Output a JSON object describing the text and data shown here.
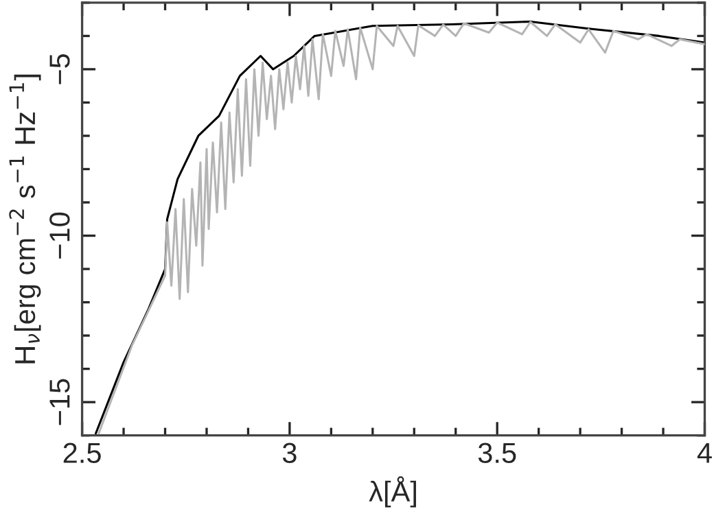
{
  "chart_data": {
    "type": "line",
    "xlabel": "λ[Å]",
    "ylabel": "H$_{ν}$[erg cm$^{−2}$ s$^{−1}$ Hz$^{−1}$]",
    "xlim": [
      2.5,
      4
    ],
    "ylim": [
      -16,
      -3
    ],
    "xticks": [
      2.5,
      3,
      3.5,
      4
    ],
    "yticks": [
      {
        "value": -15,
        "label": "−15"
      },
      {
        "value": -10,
        "label": "−10"
      },
      {
        "value": -5,
        "label": "−5"
      }
    ],
    "grid": false,
    "legend": false,
    "marker": "none",
    "line_style": "solid",
    "series": [
      {
        "color": "#000000",
        "x": [
          2.533,
          2.6,
          2.66,
          2.7,
          2.705,
          2.73,
          2.78,
          2.83,
          2.88,
          2.93,
          2.96,
          3.01,
          3.06,
          3.2,
          3.39,
          3.58,
          3.72,
          3.89,
          4.0
        ],
        "values": [
          -15.94,
          -13.8,
          -12.2,
          -11.0,
          -9.5,
          -8.3,
          -7.0,
          -6.4,
          -5.2,
          -4.6,
          -5.0,
          -4.6,
          -4.0,
          -3.7,
          -3.65,
          -3.57,
          -3.78,
          -4.0,
          -4.2
        ]
      },
      {
        "color": "#b4b4b4",
        "x": [
          2.54,
          2.62,
          2.7,
          2.705,
          2.715,
          2.725,
          2.735,
          2.745,
          2.755,
          2.765,
          2.775,
          2.785,
          2.79,
          2.8,
          2.805,
          2.815,
          2.825,
          2.835,
          2.845,
          2.855,
          2.865,
          2.875,
          2.885,
          2.895,
          2.905,
          2.915,
          2.925,
          2.935,
          2.945,
          2.955,
          2.965,
          2.975,
          2.985,
          2.995,
          3.005,
          3.015,
          3.025,
          3.035,
          3.045,
          3.055,
          3.07,
          3.08,
          3.1,
          3.11,
          3.13,
          3.14,
          3.16,
          3.17,
          3.2,
          3.21,
          3.25,
          3.26,
          3.3,
          3.31,
          3.35,
          3.37,
          3.4,
          3.42,
          3.48,
          3.5,
          3.56,
          3.58,
          3.62,
          3.64,
          3.7,
          3.72,
          3.76,
          3.78,
          3.84,
          3.86,
          3.92,
          3.94,
          4.0
        ],
        "values": [
          -15.94,
          -13.3,
          -11.2,
          -9.6,
          -11.5,
          -9.2,
          -11.9,
          -8.9,
          -11.7,
          -8.6,
          -10.3,
          -7.8,
          -10.9,
          -7.4,
          -9.8,
          -7.2,
          -9.3,
          -6.6,
          -9.2,
          -6.3,
          -8.4,
          -5.6,
          -8.2,
          -5.3,
          -7.9,
          -5.0,
          -7.0,
          -4.8,
          -6.5,
          -5.2,
          -6.8,
          -5.0,
          -6.2,
          -4.8,
          -6.0,
          -4.6,
          -5.6,
          -4.3,
          -5.8,
          -4.1,
          -5.9,
          -3.95,
          -5.2,
          -3.85,
          -4.9,
          -3.8,
          -5.3,
          -3.75,
          -5.0,
          -3.7,
          -4.3,
          -3.7,
          -4.6,
          -3.68,
          -4.0,
          -3.66,
          -4.0,
          -3.62,
          -3.9,
          -3.6,
          -3.95,
          -3.58,
          -4.0,
          -3.65,
          -4.2,
          -3.8,
          -4.5,
          -3.85,
          -4.1,
          -3.95,
          -4.3,
          -4.1,
          -4.25
        ]
      }
    ]
  }
}
